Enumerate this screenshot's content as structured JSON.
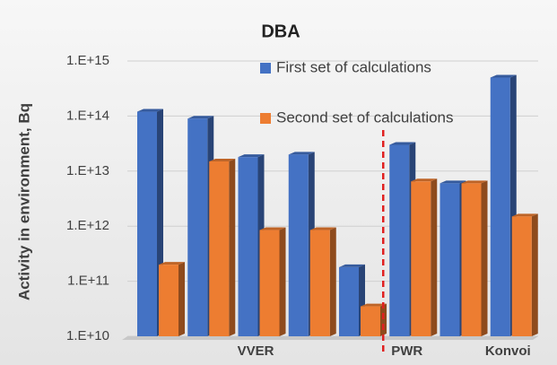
{
  "chart_data": {
    "type": "bar",
    "title": "DBA",
    "ylabel": "Activity in environment, Bq",
    "categories": [
      null,
      null,
      "VVER",
      null,
      null,
      "PWR",
      null,
      "Konvoi"
    ],
    "series": [
      {
        "name": "First set of calculations",
        "color": "#4472c4",
        "values": [
          120000000000000,
          90000000000000,
          18000000000000,
          20000000000000,
          180000000000,
          30000000000000,
          6000000000000,
          500000000000000
        ]
      },
      {
        "name": "Second set of calculations",
        "color": "#ed7d31",
        "values": [
          200000000000,
          15000000000000,
          850000000000,
          850000000000,
          35000000000,
          6500000000000,
          6000000000000,
          1500000000000
        ]
      }
    ],
    "ylim": [
      10000000000,
      1000000000000000
    ],
    "log_scale": true,
    "yticks": [
      {
        "value": 10000000000,
        "label": "1.E+10"
      },
      {
        "value": 100000000000,
        "label": "1.E+11"
      },
      {
        "value": 1000000000000,
        "label": "1.E+12"
      },
      {
        "value": 10000000000000,
        "label": "1.E+13"
      },
      {
        "value": 100000000000000,
        "label": "1.E+14"
      },
      {
        "value": 1000000000000000,
        "label": "1.E+15"
      }
    ],
    "grid": true,
    "legend": "top"
  }
}
